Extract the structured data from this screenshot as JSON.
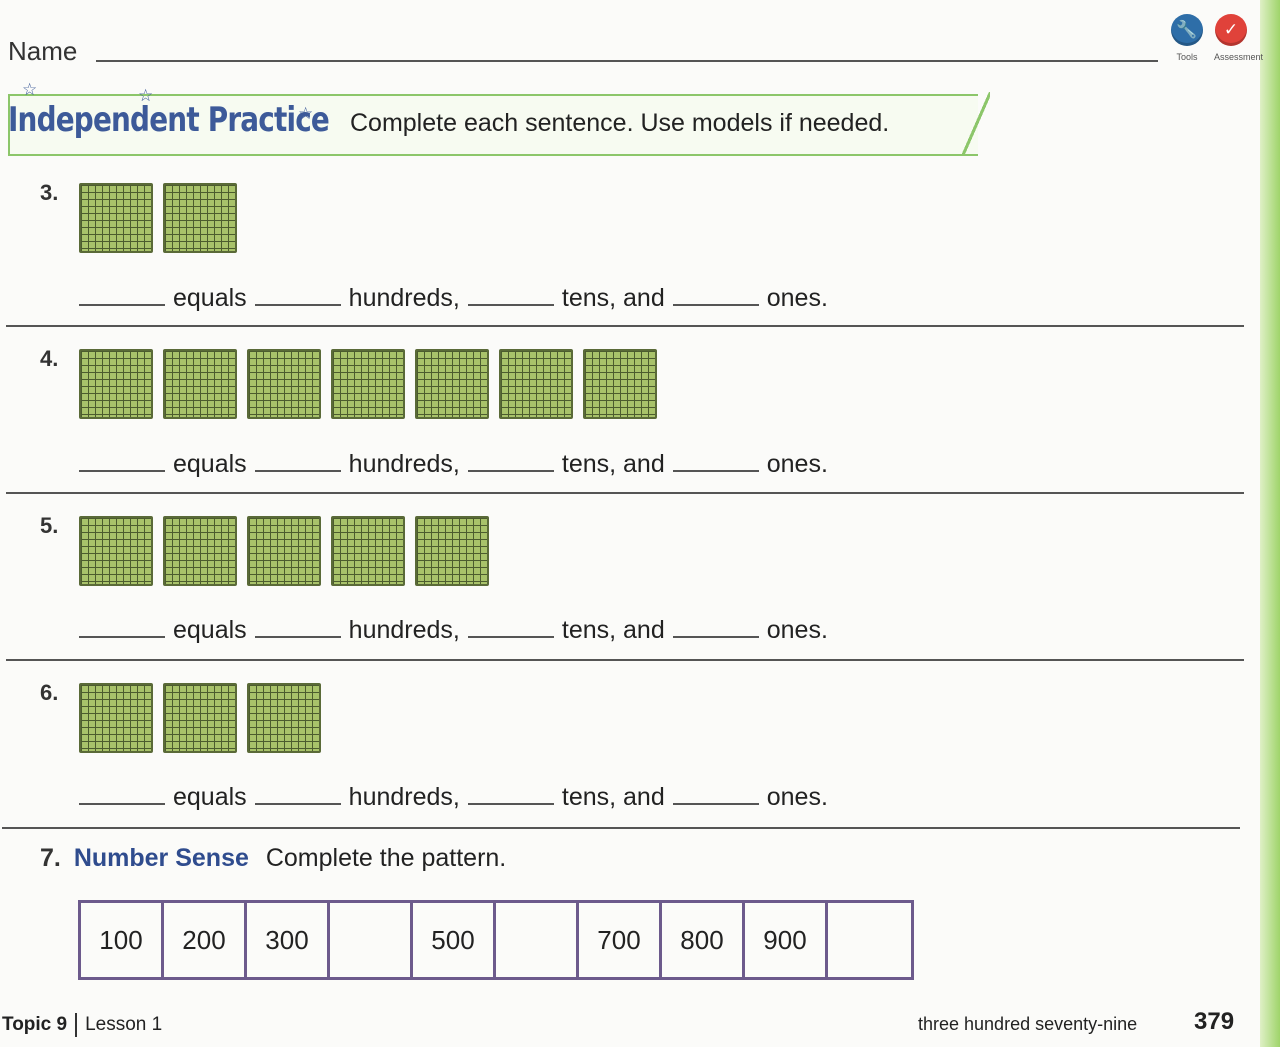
{
  "header": {
    "name_label": "Name",
    "tools": [
      {
        "icon": "wrench-icon",
        "caption": "Tools",
        "color": "#2e6ea8",
        "glyph": "🔧"
      },
      {
        "icon": "check-icon",
        "caption": "Assessment",
        "color": "#e0423a",
        "glyph": "✓"
      }
    ]
  },
  "banner": {
    "title": "Independent Practice",
    "instruction": "Complete each sentence. Use models if needed."
  },
  "sentence_words": {
    "equals": "equals",
    "hundreds": "hundreds,",
    "tens": "tens, and",
    "ones": "ones."
  },
  "problems": [
    {
      "number": "3.",
      "flats": 2
    },
    {
      "number": "4.",
      "flats": 7
    },
    {
      "number": "5.",
      "flats": 5
    },
    {
      "number": "6.",
      "flats": 3
    }
  ],
  "problem7": {
    "number": "7.",
    "heading": "Number Sense",
    "instruction": "Complete the pattern.",
    "cells": [
      "100",
      "200",
      "300",
      "",
      "500",
      "",
      "700",
      "800",
      "900",
      ""
    ]
  },
  "footer": {
    "topic": "Topic 9",
    "lesson": "Lesson 1",
    "page_words": "three hundred seventy-nine",
    "page_number": "379"
  }
}
